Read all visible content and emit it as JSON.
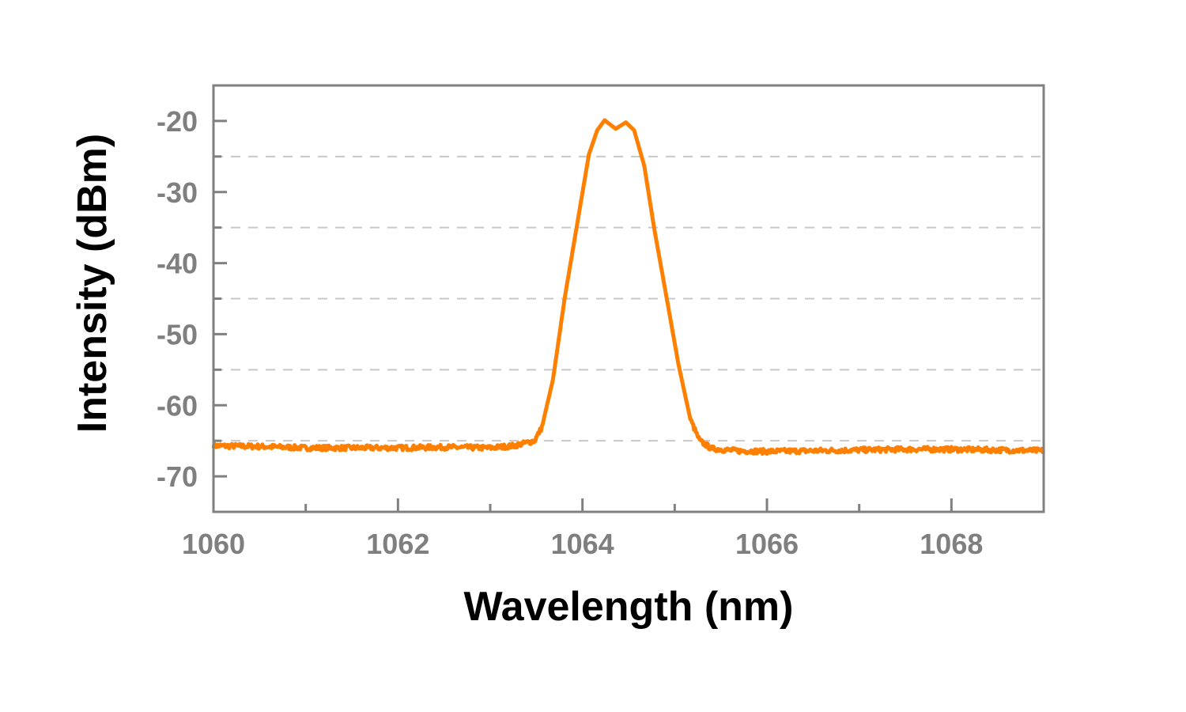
{
  "chart_data": {
    "type": "line",
    "title": "",
    "xlabel": "Wavelength (nm)",
    "ylabel": "Intensity (dBm)",
    "xlim": [
      1060,
      1069
    ],
    "ylim": [
      -75,
      -15
    ],
    "xticks": [
      1060,
      1062,
      1064,
      1066,
      1068
    ],
    "xtick_labels": [
      "1060",
      "1062",
      "1064",
      "1066",
      "1068"
    ],
    "xminor_ticks": [
      1061,
      1063,
      1065,
      1067
    ],
    "yticks": [
      -20,
      -30,
      -40,
      -50,
      -60,
      -70
    ],
    "ytick_labels": [
      "-20",
      "-30",
      "-40",
      "-50",
      "-60",
      "-70"
    ],
    "grid": {
      "horizontal_dashed_at": [
        -25,
        -35,
        -45,
        -55,
        -65
      ]
    },
    "legend": "none",
    "series": [
      {
        "color": "#ff8000",
        "x": [
          1060.0,
          1060.5,
          1061.0,
          1061.5,
          1062.0,
          1062.5,
          1063.0,
          1063.26,
          1063.48,
          1063.56,
          1063.68,
          1063.81,
          1063.94,
          1064.07,
          1064.16,
          1064.24,
          1064.36,
          1064.47,
          1064.56,
          1064.67,
          1064.78,
          1064.91,
          1065.04,
          1065.17,
          1065.27,
          1065.4,
          1065.66,
          1066.0,
          1066.5,
          1067.0,
          1067.5,
          1068.0,
          1068.5,
          1069.0
        ],
        "y": [
          -65.7,
          -65.8,
          -66.0,
          -66.0,
          -66.0,
          -65.9,
          -66.0,
          -65.7,
          -65.0,
          -63.1,
          -56.4,
          -44.7,
          -34.7,
          -24.7,
          -21.3,
          -19.9,
          -21.1,
          -20.2,
          -21.3,
          -26.3,
          -35.3,
          -44.7,
          -54.2,
          -62.0,
          -65.0,
          -66.1,
          -66.4,
          -66.5,
          -66.4,
          -66.3,
          -66.2,
          -66.2,
          -66.3,
          -66.4
        ]
      }
    ]
  }
}
